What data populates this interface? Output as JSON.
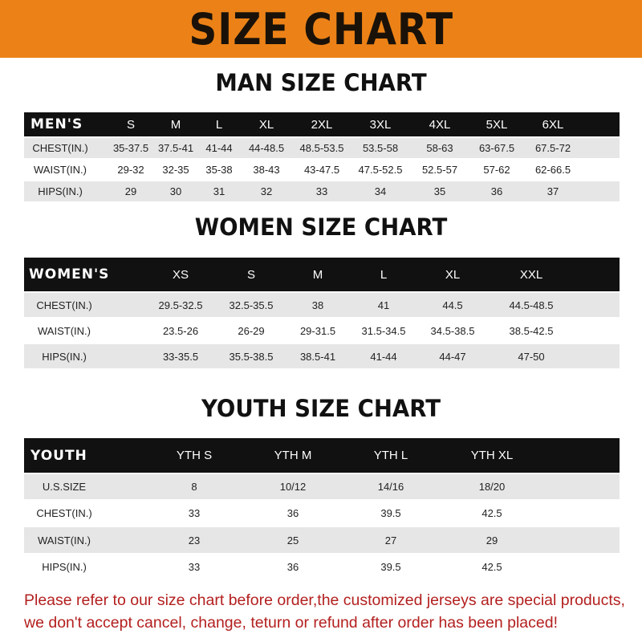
{
  "banner": {
    "title": "SIZE CHART",
    "color": "#ec8217"
  },
  "men": {
    "title": "MAN SIZE CHART",
    "header": [
      "MEN'S",
      "S",
      "M",
      "L",
      "XL",
      "2XL",
      "3XL",
      "4XL",
      "5XL",
      "6XL"
    ],
    "rows": [
      [
        "CHEST(IN.)",
        "35-37.5",
        "37.5-41",
        "41-44",
        "44-48.5",
        "48.5-53.5",
        "53.5-58",
        "58-63",
        "63-67.5",
        "67.5-72"
      ],
      [
        "WAIST(IN.)",
        "29-32",
        "32-35",
        "35-38",
        "38-43",
        "43-47.5",
        "47.5-52.5",
        "52.5-57",
        "57-62",
        "62-66.5"
      ],
      [
        "HIPS(IN.)",
        "29",
        "30",
        "31",
        "32",
        "33",
        "34",
        "35",
        "36",
        "37"
      ]
    ]
  },
  "women": {
    "title": "WOMEN SIZE CHART",
    "header": [
      "WOMEN'S",
      "XS",
      "S",
      "M",
      "L",
      "XL",
      "XXL"
    ],
    "rows": [
      [
        "CHEST(IN.)",
        "29.5-32.5",
        "32.5-35.5",
        "38",
        "41",
        "44.5",
        "44.5-48.5"
      ],
      [
        "WAIST(IN.)",
        "23.5-26",
        "26-29",
        "29-31.5",
        "31.5-34.5",
        "34.5-38.5",
        "38.5-42.5"
      ],
      [
        "HIPS(IN.)",
        "33-35.5",
        "35.5-38.5",
        "38.5-41",
        "41-44",
        "44-47",
        "47-50"
      ]
    ]
  },
  "youth": {
    "title": "YOUTH SIZE CHART",
    "header": [
      "YOUTH",
      "YTH S",
      "YTH M",
      "YTH L",
      "YTH XL"
    ],
    "rows": [
      [
        "U.S.SIZE",
        "8",
        "10/12",
        "14/16",
        "18/20"
      ],
      [
        "CHEST(IN.)",
        "33",
        "36",
        "39.5",
        "42.5"
      ],
      [
        "WAIST(IN.)",
        "23",
        "25",
        "27",
        "29"
      ],
      [
        "HIPS(IN.)",
        "33",
        "36",
        "39.5",
        "42.5"
      ]
    ]
  },
  "footer": {
    "line1": "Please refer to our size chart before order,the customized jerseys are special products,",
    "line2": "we don't accept cancel, change, teturn or refund after order has been placed!",
    "color": "#b3201f"
  }
}
